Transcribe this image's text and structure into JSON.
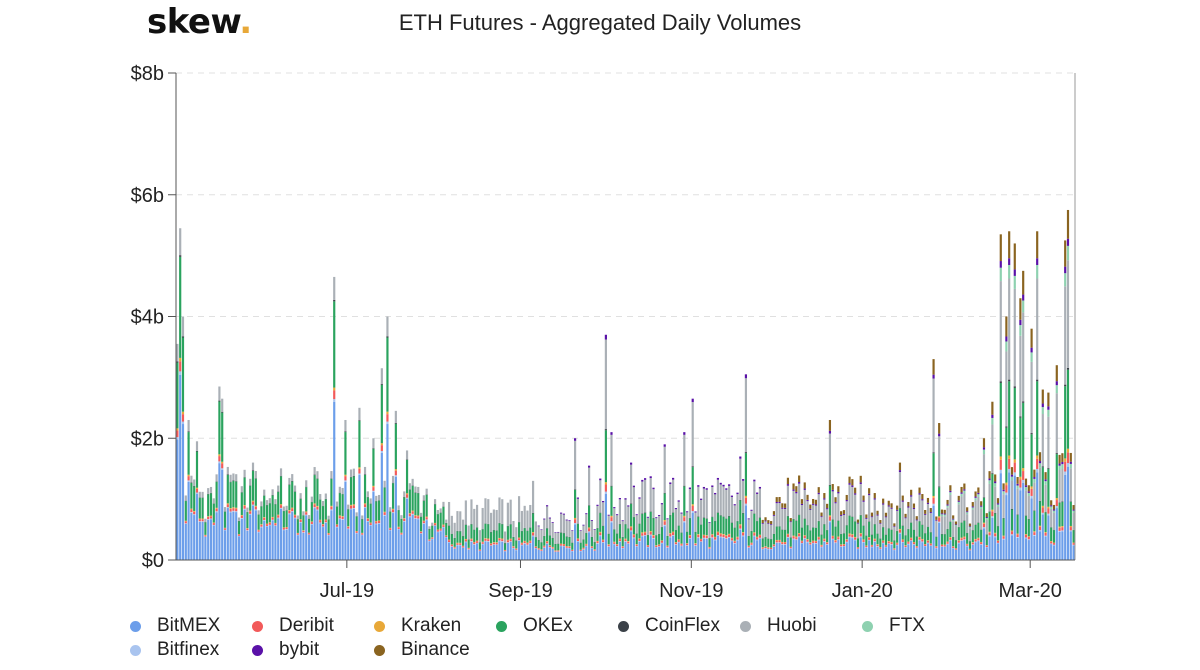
{
  "logo": {
    "text": "skew",
    "dot": "."
  },
  "chart_data": {
    "type": "bar",
    "stacked": true,
    "title": "ETH Futures - Aggregated Daily Volumes",
    "xlabel": "",
    "ylabel": "",
    "ylim": [
      0,
      8
    ],
    "y_unit": "billions USD",
    "y_ticks": [
      "$0",
      "$2b",
      "$4b",
      "$6b",
      "$8b"
    ],
    "x_ticks": [
      "Jul-19",
      "Sep-19",
      "Nov-19",
      "Jan-20",
      "Mar-20"
    ],
    "x_range": [
      "2019-05-01",
      "2020-03-16"
    ],
    "grid": true,
    "legend_position": "bottom",
    "series_names": [
      "BitMEX",
      "Deribit",
      "Kraken",
      "OKEx",
      "CoinFlex",
      "Huobi",
      "FTX",
      "Bitfinex",
      "bybit",
      "Binance"
    ],
    "series_colors": [
      "#6c9eea",
      "#f25a5a",
      "#e8a838",
      "#2aa35e",
      "#3b4148",
      "#aab0b6",
      "#8ed1b0",
      "#a9c4ef",
      "#5a11a8",
      "#8a6420"
    ],
    "daily_total_approx": [
      {
        "date": "2019-05-01",
        "total": 3.55
      },
      {
        "date": "2019-05-02",
        "total": 5.45
      },
      {
        "date": "2019-05-03",
        "total": 4.0
      },
      {
        "date": "2019-05-05",
        "total": 2.3
      },
      {
        "date": "2019-05-08",
        "total": 1.95
      },
      {
        "date": "2019-05-13",
        "total": 1.2
      },
      {
        "date": "2019-05-16",
        "total": 2.85
      },
      {
        "date": "2019-05-17",
        "total": 2.65
      },
      {
        "date": "2019-05-20",
        "total": 1.4
      },
      {
        "date": "2019-05-28",
        "total": 1.6
      },
      {
        "date": "2019-06-05",
        "total": 1.0
      },
      {
        "date": "2019-06-15",
        "total": 0.8
      },
      {
        "date": "2019-06-26",
        "total": 4.65
      },
      {
        "date": "2019-06-30",
        "total": 2.3
      },
      {
        "date": "2019-07-05",
        "total": 2.5
      },
      {
        "date": "2019-07-10",
        "total": 2.0
      },
      {
        "date": "2019-07-13",
        "total": 3.15
      },
      {
        "date": "2019-07-15",
        "total": 4.0
      },
      {
        "date": "2019-07-18",
        "total": 2.45
      },
      {
        "date": "2019-07-22",
        "total": 1.8
      },
      {
        "date": "2019-08-01",
        "total": 1.0
      },
      {
        "date": "2019-08-10",
        "total": 0.8
      },
      {
        "date": "2019-08-20",
        "total": 1.0
      },
      {
        "date": "2019-09-05",
        "total": 1.3
      },
      {
        "date": "2019-09-10",
        "total": 0.9
      },
      {
        "date": "2019-09-20",
        "total": 2.0
      },
      {
        "date": "2019-09-25",
        "total": 1.55
      },
      {
        "date": "2019-10-01",
        "total": 3.7
      },
      {
        "date": "2019-10-03",
        "total": 2.1
      },
      {
        "date": "2019-10-10",
        "total": 1.6
      },
      {
        "date": "2019-10-22",
        "total": 1.9
      },
      {
        "date": "2019-10-29",
        "total": 2.1
      },
      {
        "date": "2019-11-01",
        "total": 2.65
      },
      {
        "date": "2019-11-05",
        "total": 1.2
      },
      {
        "date": "2019-11-18",
        "total": 1.7
      },
      {
        "date": "2019-11-20",
        "total": 3.05
      },
      {
        "date": "2019-11-25",
        "total": 1.2
      },
      {
        "date": "2019-12-10",
        "total": 1.0
      },
      {
        "date": "2019-12-18",
        "total": 1.1
      },
      {
        "date": "2019-12-20",
        "total": 2.3
      },
      {
        "date": "2020-01-05",
        "total": 1.1
      },
      {
        "date": "2020-01-14",
        "total": 1.6
      },
      {
        "date": "2020-01-26",
        "total": 3.3
      },
      {
        "date": "2020-01-28",
        "total": 2.25
      },
      {
        "date": "2020-02-05",
        "total": 1.2
      },
      {
        "date": "2020-02-13",
        "total": 2.0
      },
      {
        "date": "2020-02-16",
        "total": 2.6
      },
      {
        "date": "2020-02-19",
        "total": 5.35
      },
      {
        "date": "2020-02-21",
        "total": 4.0
      },
      {
        "date": "2020-02-22",
        "total": 5.4
      },
      {
        "date": "2020-02-24",
        "total": 5.2
      },
      {
        "date": "2020-02-26",
        "total": 4.3
      },
      {
        "date": "2020-02-27",
        "total": 4.75
      },
      {
        "date": "2020-03-01",
        "total": 3.8
      },
      {
        "date": "2020-03-03",
        "total": 5.4
      },
      {
        "date": "2020-03-05",
        "total": 2.8
      },
      {
        "date": "2020-03-07",
        "total": 2.75
      },
      {
        "date": "2020-03-10",
        "total": 3.2
      },
      {
        "date": "2020-03-13",
        "total": 5.25
      },
      {
        "date": "2020-03-14",
        "total": 5.75
      }
    ]
  },
  "legend": {
    "items": [
      {
        "label": "BitMEX",
        "color": "#6c9eea"
      },
      {
        "label": "Deribit",
        "color": "#f25a5a"
      },
      {
        "label": "Kraken",
        "color": "#e8a838"
      },
      {
        "label": "OKEx",
        "color": "#2aa35e"
      },
      {
        "label": "CoinFlex",
        "color": "#3b4148"
      },
      {
        "label": "Huobi",
        "color": "#aab0b6"
      },
      {
        "label": "FTX",
        "color": "#8ed1b0"
      },
      {
        "label": "Bitfinex",
        "color": "#a9c4ef"
      },
      {
        "label": "bybit",
        "color": "#5a11a8"
      },
      {
        "label": "Binance",
        "color": "#8a6420"
      }
    ]
  }
}
